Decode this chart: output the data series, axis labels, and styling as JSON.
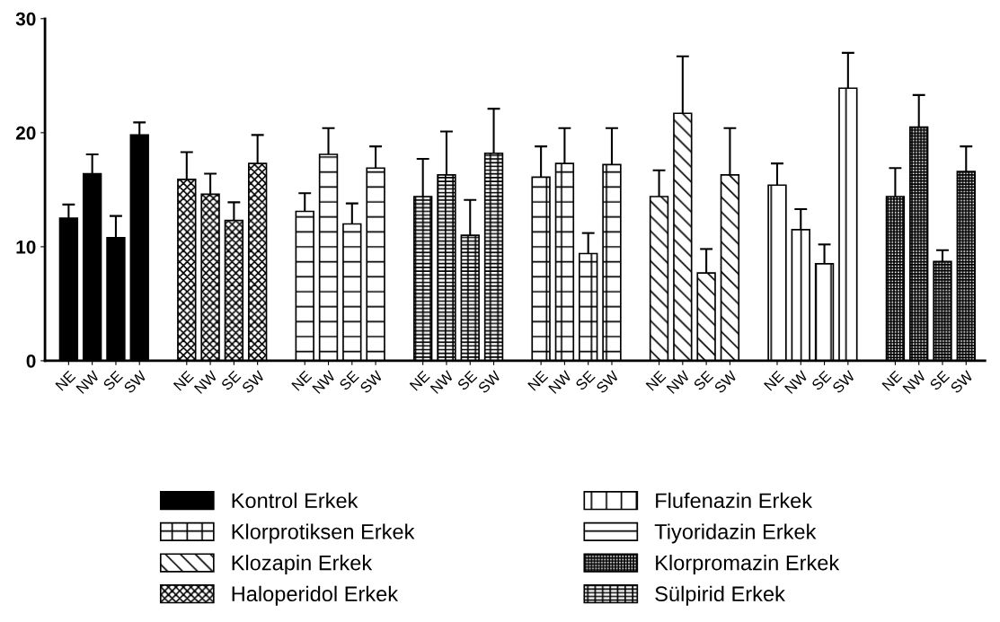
{
  "chart_data": {
    "type": "bar",
    "categories": [
      "NE",
      "NW",
      "SE",
      "SW",
      "NE",
      "NW",
      "SE",
      "SW",
      "NE",
      "NW",
      "SE",
      "SW",
      "NE",
      "NW",
      "SE",
      "SW",
      "NE",
      "NW",
      "SE",
      "SW",
      "NE",
      "NW",
      "SE",
      "SW",
      "NE",
      "NW",
      "SE",
      "SW",
      "NE",
      "NW",
      "SE",
      "SW"
    ],
    "series": [
      {
        "name": "Kontrol Erkek",
        "color": "#000000",
        "values": [
          12.5,
          16.4,
          10.8,
          19.8,
          null,
          null,
          null,
          null,
          null,
          null,
          null,
          null,
          null,
          null,
          null,
          null,
          null,
          null,
          null,
          null,
          null,
          null,
          null,
          null,
          null,
          null,
          null,
          null,
          null,
          null,
          null,
          null
        ],
        "errors": [
          1.2,
          1.7,
          1.9,
          1.1,
          null,
          null,
          null,
          null,
          null,
          null,
          null,
          null,
          null,
          null,
          null,
          null,
          null,
          null,
          null,
          null,
          null,
          null,
          null,
          null,
          null,
          null,
          null,
          null,
          null,
          null,
          null,
          null
        ]
      },
      {
        "name": "Klorprotiksen Erkek",
        "color": "#000000",
        "values": [
          null,
          null,
          null,
          null,
          null,
          null,
          null,
          null,
          null,
          null,
          null,
          null,
          null,
          null,
          null,
          null,
          16.1,
          17.3,
          9.4,
          17.2,
          null,
          null,
          null,
          null,
          null,
          null,
          null,
          null,
          null,
          null,
          null,
          null
        ],
        "errors": [
          null,
          null,
          null,
          null,
          null,
          null,
          null,
          null,
          null,
          null,
          null,
          null,
          null,
          null,
          null,
          null,
          2.7,
          3.1,
          1.8,
          3.2,
          null,
          null,
          null,
          null,
          null,
          null,
          null,
          null,
          null,
          null,
          null,
          null
        ]
      },
      {
        "name": "Klozapin Erkek",
        "color": "#000000",
        "values": [
          null,
          null,
          null,
          null,
          null,
          null,
          null,
          null,
          null,
          null,
          null,
          null,
          null,
          null,
          null,
          null,
          null,
          null,
          null,
          null,
          14.4,
          21.7,
          7.7,
          16.3,
          null,
          null,
          null,
          null,
          null,
          null,
          null,
          null
        ],
        "errors": [
          null,
          null,
          null,
          null,
          null,
          null,
          null,
          null,
          null,
          null,
          null,
          null,
          null,
          null,
          null,
          null,
          null,
          null,
          null,
          null,
          2.3,
          5.0,
          2.1,
          4.1,
          null,
          null,
          null,
          null,
          null,
          null,
          null,
          null
        ]
      },
      {
        "name": "Haloperidol Erkek",
        "color": "#000000",
        "values": [
          null,
          null,
          null,
          null,
          15.9,
          14.6,
          12.3,
          17.3,
          null,
          null,
          null,
          null,
          null,
          null,
          null,
          null,
          null,
          null,
          null,
          null,
          null,
          null,
          null,
          null,
          null,
          null,
          null,
          null,
          null,
          null,
          null,
          null
        ],
        "errors": [
          null,
          null,
          null,
          null,
          2.4,
          1.8,
          1.6,
          2.5,
          null,
          null,
          null,
          null,
          null,
          null,
          null,
          null,
          null,
          null,
          null,
          null,
          null,
          null,
          null,
          null,
          null,
          null,
          null,
          null,
          null,
          null,
          null,
          null
        ]
      },
      {
        "name": "Flufenazin Erkek",
        "color": "#000000",
        "values": [
          null,
          null,
          null,
          null,
          null,
          null,
          null,
          null,
          null,
          null,
          null,
          null,
          null,
          null,
          null,
          null,
          null,
          null,
          null,
          null,
          null,
          null,
          null,
          null,
          15.4,
          11.5,
          8.5,
          23.9,
          null,
          null,
          null,
          null
        ],
        "errors": [
          null,
          null,
          null,
          null,
          null,
          null,
          null,
          null,
          null,
          null,
          null,
          null,
          null,
          null,
          null,
          null,
          null,
          null,
          null,
          null,
          null,
          null,
          null,
          null,
          1.9,
          1.8,
          1.7,
          3.1,
          null,
          null,
          null,
          null
        ]
      },
      {
        "name": "Tiyoridazin Erkek",
        "color": "#000000",
        "values": [
          null,
          null,
          null,
          null,
          null,
          null,
          null,
          null,
          13.1,
          18.1,
          12.0,
          16.9,
          null,
          null,
          null,
          null,
          null,
          null,
          null,
          null,
          null,
          null,
          null,
          null,
          null,
          null,
          null,
          null,
          null,
          null,
          null,
          null
        ],
        "errors": [
          null,
          null,
          null,
          null,
          null,
          null,
          null,
          null,
          1.6,
          2.3,
          1.8,
          1.9,
          null,
          null,
          null,
          null,
          null,
          null,
          null,
          null,
          null,
          null,
          null,
          null,
          null,
          null,
          null,
          null,
          null,
          null,
          null,
          null
        ]
      },
      {
        "name": "Klorpromazin Erkek",
        "color": "#000000",
        "values": [
          null,
          null,
          null,
          null,
          null,
          null,
          null,
          null,
          null,
          null,
          null,
          null,
          null,
          null,
          null,
          null,
          null,
          null,
          null,
          null,
          null,
          null,
          null,
          null,
          null,
          null,
          null,
          null,
          14.4,
          20.5,
          8.7,
          16.6
        ],
        "errors": [
          null,
          null,
          null,
          null,
          null,
          null,
          null,
          null,
          null,
          null,
          null,
          null,
          null,
          null,
          null,
          null,
          null,
          null,
          null,
          null,
          null,
          null,
          null,
          null,
          null,
          null,
          null,
          null,
          2.5,
          2.8,
          1.0,
          2.2
        ]
      },
      {
        "name": "Sülpirid Erkek",
        "color": "#000000",
        "values": [
          null,
          null,
          null,
          null,
          null,
          null,
          null,
          null,
          null,
          null,
          null,
          null,
          14.4,
          16.3,
          11.0,
          18.2,
          null,
          null,
          null,
          null,
          null,
          null,
          null,
          null,
          null,
          null,
          null,
          null,
          null,
          null,
          null,
          null
        ],
        "errors": [
          null,
          null,
          null,
          null,
          null,
          null,
          null,
          null,
          null,
          null,
          null,
          null,
          3.3,
          3.8,
          3.1,
          3.9,
          null,
          null,
          null,
          null,
          null,
          null,
          null,
          null,
          null,
          null,
          null,
          null,
          null,
          null,
          null,
          null
        ]
      }
    ],
    "ylim": [
      0,
      30
    ],
    "yticks": [
      0,
      10,
      20,
      30
    ],
    "grid": false,
    "legend": "bottom"
  }
}
